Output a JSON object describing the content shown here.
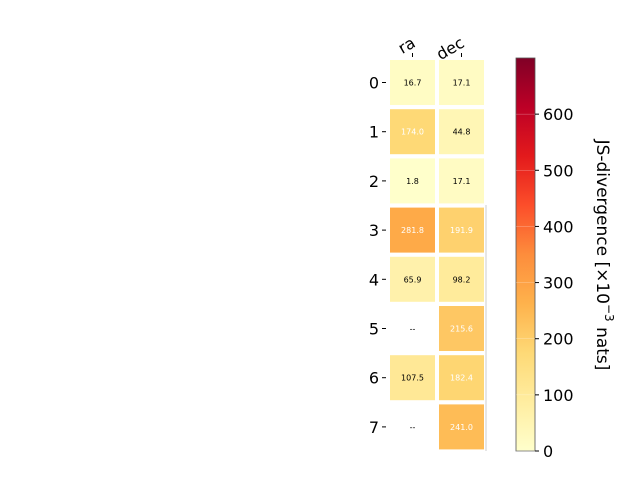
{
  "chart_data": {
    "type": "heatmap",
    "columns": [
      "ra",
      "dec"
    ],
    "rows": [
      "0",
      "1",
      "2",
      "3",
      "4",
      "5",
      "6",
      "7"
    ],
    "values": [
      [
        16.7,
        17.1
      ],
      [
        174.0,
        44.8
      ],
      [
        1.8,
        17.1
      ],
      [
        281.8,
        191.9
      ],
      [
        65.9,
        98.2
      ],
      [
        null,
        215.6
      ],
      [
        107.5,
        182.4
      ],
      [
        null,
        241.0
      ]
    ],
    "cell_labels": [
      [
        "16.7",
        "17.1"
      ],
      [
        "174.0",
        "44.8"
      ],
      [
        "1.8",
        "17.1"
      ],
      [
        "281.8",
        "191.9"
      ],
      [
        "65.9",
        "98.2"
      ],
      [
        "--",
        "215.6"
      ],
      [
        "107.5",
        "182.4"
      ],
      [
        "--",
        "241.0"
      ]
    ],
    "colormap": "YlOrRd",
    "colorbar": {
      "label_text": "JS-divergence [×10",
      "label_exponent": "−3",
      "label_unit": " nats]",
      "range": [
        0,
        700
      ],
      "ticks": [
        0,
        100,
        200,
        300,
        400,
        500,
        600
      ],
      "tick_labels": [
        "0",
        "100",
        "200",
        "300",
        "400",
        "500",
        "600"
      ]
    },
    "colors": {
      "stops": [
        "#ffffcc",
        "#ffeda0",
        "#fed976",
        "#feb24c",
        "#fd8d3c",
        "#fc4e2a",
        "#e31a1c",
        "#bd0026",
        "#800026"
      ],
      "text_light": "#ffffff",
      "text_dark": "#000000"
    }
  }
}
